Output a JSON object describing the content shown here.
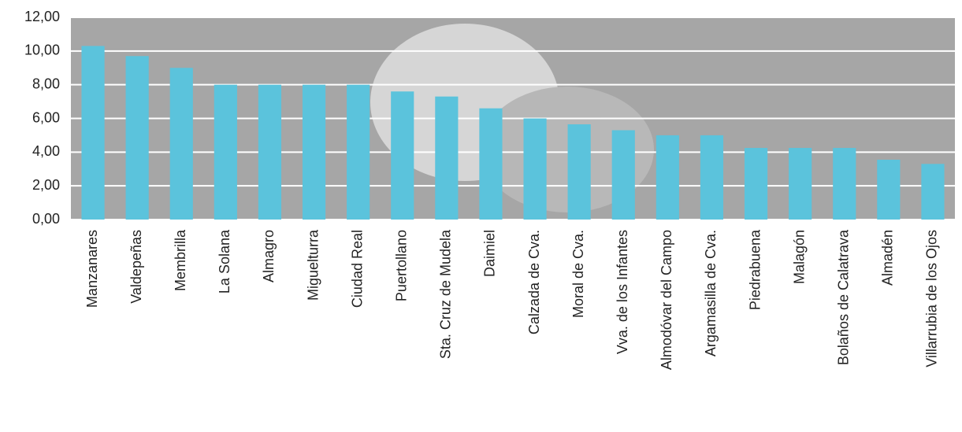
{
  "chart_data": {
    "type": "bar",
    "categories": [
      "Manzanares",
      "Valdepeñas",
      "Membrilla",
      "La Solana",
      "Almagro",
      "Miguelturra",
      "Ciudad Real",
      "Puertollano",
      "Sta. Cruz de Mudela",
      "Daimiel",
      "Calzada de Cva.",
      "Moral de Cva.",
      "Vva. de los Infantes",
      "Almodóvar del Campo",
      "Argamasilla de Cva.",
      "Piedrabuena",
      "Malagón",
      "Bolaños de Calatrava",
      "Almadén",
      "Villarrubia de los Ojos"
    ],
    "values": [
      10.3,
      9.7,
      9.0,
      8.0,
      8.0,
      8.0,
      8.0,
      7.6,
      7.3,
      6.6,
      6.0,
      5.65,
      5.3,
      5.0,
      5.0,
      4.25,
      4.25,
      4.25,
      3.55,
      3.3
    ],
    "color": "#5bc3dc",
    "ylim": [
      0,
      12
    ],
    "yticks": [
      {
        "value": 0,
        "label": "0,00"
      },
      {
        "value": 2,
        "label": "2,00"
      },
      {
        "value": 4,
        "label": "4,00"
      },
      {
        "value": 6,
        "label": "6,00"
      },
      {
        "value": 8,
        "label": "8,00"
      },
      {
        "value": 10,
        "label": "10,00"
      },
      {
        "value": 12,
        "label": "12,00"
      }
    ],
    "grid": true
  }
}
